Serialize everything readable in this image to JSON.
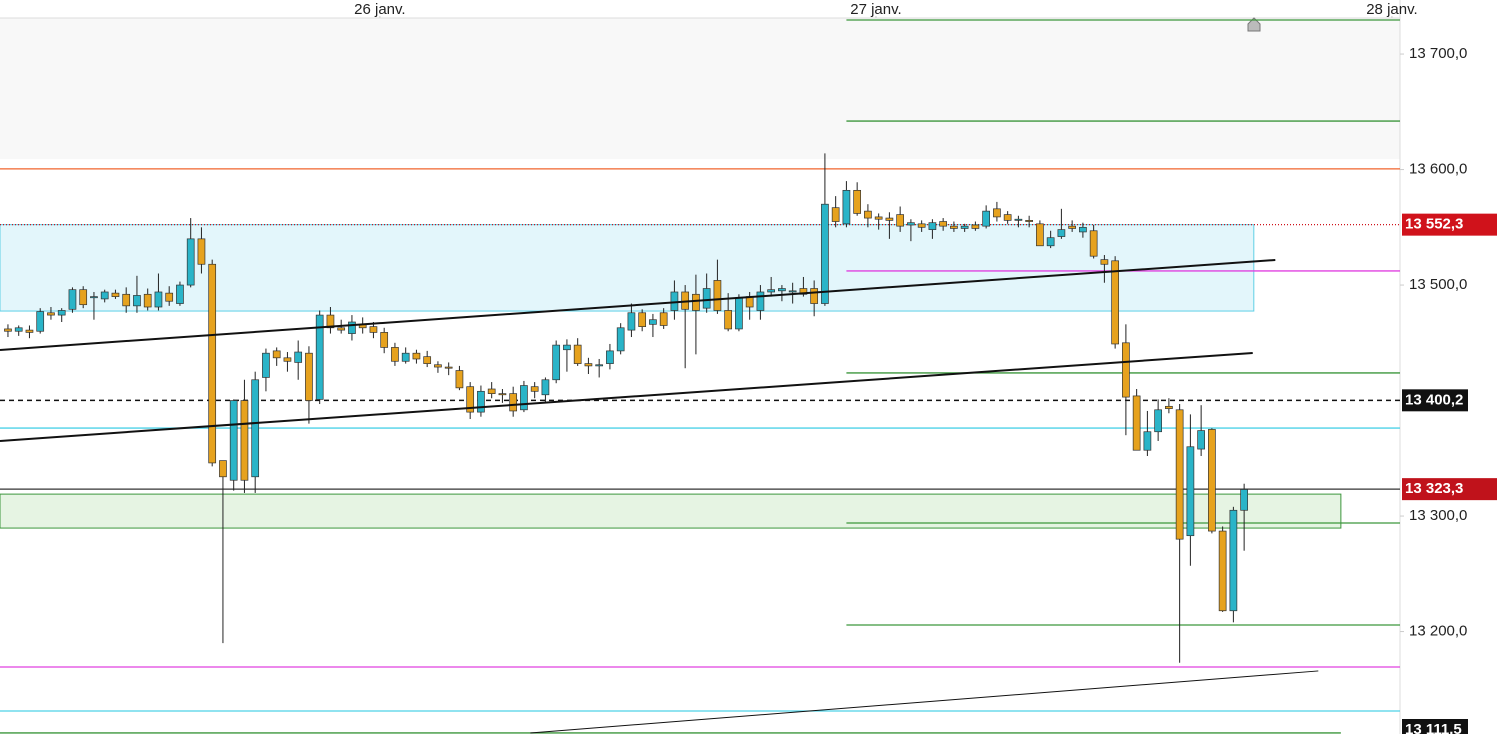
{
  "chart_data": {
    "type": "candlestick",
    "up_color": "#2ab4c8",
    "down_color": "#e6a21e",
    "xlim": [
      -0.74,
      129.5
    ],
    "xticks": [
      {
        "value": 34.6,
        "label": "26 janv."
      },
      {
        "value": 80.75,
        "label": "27 janv."
      },
      {
        "value": 128.75,
        "label": "28 janv."
      }
    ],
    "ylim": [
      13111.3,
      13746.8
    ],
    "yticks": [
      {
        "value": 13200,
        "label": "13 200,0"
      },
      {
        "value": 13300,
        "label": "13 300,0"
      },
      {
        "value": 13500,
        "label": "13 500,0"
      },
      {
        "value": 13600,
        "label": "13 600,0"
      },
      {
        "value": 13700,
        "label": "13 700,0"
      }
    ],
    "open": [
      13462,
      13460,
      13461,
      13460,
      13476,
      13474,
      13479,
      13496,
      13489,
      13488,
      13493,
      13492,
      13482,
      13492,
      13481,
      13493,
      13484,
      13500,
      13540,
      13518,
      13348,
      13331,
      13400,
      13334,
      13420,
      13443,
      13437,
      13433,
      13441,
      13401,
      13474,
      13463,
      13458,
      13466,
      13464,
      13459,
      13446,
      13434,
      13441,
      13438,
      13431,
      13429,
      13426,
      13412,
      13390,
      13410,
      13406,
      13406,
      13392,
      13412,
      13405,
      13418,
      13444,
      13448,
      13432,
      13430,
      13432,
      13443,
      13461,
      13476,
      13466,
      13476,
      13478,
      13494,
      13492,
      13480,
      13504,
      13478,
      13462,
      13490,
      13478,
      13494,
      13495,
      13494,
      13497,
      13497,
      13484,
      13567,
      13553,
      13582,
      13564,
      13559,
      13558,
      13561,
      13552,
      13553,
      13548,
      13555,
      13551,
      13549,
      13552,
      13551,
      13566,
      13561,
      13556,
      13556,
      13553,
      13534,
      13542,
      13551,
      13546,
      13547,
      13522,
      13521,
      13450,
      13404,
      13357,
      13373,
      13395,
      13392,
      13283,
      13358,
      13375,
      13287,
      13218,
      13305
    ],
    "high": [
      13466,
      13465,
      13465,
      13480,
      13481,
      13480,
      13498,
      13499,
      13494,
      13496,
      13496,
      13498,
      13508,
      13497,
      13510,
      13499,
      13503,
      13558,
      13550,
      13522,
      13348,
      13401,
      13418,
      13425,
      13445,
      13446,
      13442,
      13452,
      13447,
      13478,
      13481,
      13470,
      13474,
      13472,
      13468,
      13463,
      13450,
      13446,
      13444,
      13443,
      13434,
      13433,
      13430,
      13416,
      13413,
      13416,
      13410,
      13412,
      13417,
      13416,
      13420,
      13452,
      13453,
      13454,
      13437,
      13436,
      13449,
      13467,
      13484,
      13479,
      13475,
      13480,
      13504,
      13500,
      13509,
      13510,
      13522,
      13493,
      13492,
      13494,
      13500,
      13507,
      13500,
      13502,
      13507,
      13504,
      13614,
      13577,
      13590,
      13589,
      13570,
      13562,
      13563,
      13568,
      13557,
      13556,
      13557,
      13558,
      13555,
      13553,
      13555,
      13569,
      13572,
      13564,
      13560,
      13560,
      13556,
      13547,
      13566,
      13556,
      13554,
      13552,
      13526,
      13525,
      13466,
      13410,
      13391,
      13401,
      13402,
      13397,
      13388,
      13396,
      13376,
      13291,
      13308,
      13328
    ],
    "low": [
      13455,
      13456,
      13454,
      13458,
      13470,
      13468,
      13476,
      13480,
      13470,
      13485,
      13488,
      13476,
      13476,
      13478,
      13478,
      13482,
      13482,
      13498,
      13510,
      13343,
      13190,
      13322,
      13320,
      13320,
      13408,
      13430,
      13425,
      13418,
      13380,
      13397,
      13458,
      13458,
      13452,
      13458,
      13454,
      13441,
      13430,
      13432,
      13432,
      13429,
      13424,
      13422,
      13409,
      13384,
      13386,
      13402,
      13398,
      13386,
      13390,
      13402,
      13398,
      13415,
      13425,
      13430,
      13423,
      13420,
      13427,
      13440,
      13455,
      13460,
      13455,
      13462,
      13470,
      13428,
      13440,
      13476,
      13475,
      13460,
      13460,
      13470,
      13470,
      13490,
      13486,
      13484,
      13490,
      13473,
      13482,
      13550,
      13550,
      13560,
      13550,
      13548,
      13540,
      13546,
      13538,
      13546,
      13540,
      13547,
      13546,
      13546,
      13547,
      13549,
      13555,
      13553,
      13550,
      13550,
      13534,
      13532,
      13540,
      13546,
      13541,
      13523,
      13502,
      13445,
      13370,
      13357,
      13352,
      13365,
      13389,
      13173,
      13257,
      13352,
      13285,
      13217,
      13208,
      13270
    ],
    "close": [
      13460,
      13463,
      13459,
      13477,
      13474,
      13478,
      13496,
      13483,
      13490,
      13494,
      13490,
      13482,
      13491,
      13481,
      13494,
      13486,
      13500,
      13540,
      13518,
      13346,
      13334,
      13400,
      13331,
      13418,
      13441,
      13437,
      13434,
      13442,
      13400,
      13474,
      13463,
      13461,
      13468,
      13463,
      13459,
      13446,
      13434,
      13441,
      13436,
      13432,
      13429,
      13428,
      13411,
      13390,
      13408,
      13406,
      13405,
      13391,
      13413,
      13408,
      13418,
      13448,
      13448,
      13432,
      13430,
      13431,
      13443,
      13463,
      13476,
      13464,
      13470,
      13465,
      13494,
      13479,
      13478,
      13497,
      13478,
      13462,
      13489,
      13481,
      13494,
      13496,
      13497,
      13495,
      13492,
      13484,
      13570,
      13555,
      13582,
      13562,
      13558,
      13557,
      13556,
      13551,
      13554,
      13550,
      13554,
      13551,
      13549,
      13551,
      13549,
      13564,
      13559,
      13556,
      13557,
      13555,
      13534,
      13541,
      13548,
      13549,
      13550,
      13525,
      13518,
      13449,
      13403,
      13357,
      13373,
      13392,
      13393,
      13280,
      13360,
      13374,
      13287,
      13218,
      13305,
      13323
    ],
    "zones": [
      {
        "x": [
          -0.74,
          115.9
        ],
        "y": [
          13477.5,
          13552.3
        ],
        "fill": "#e3f6fb",
        "stroke": "#5fd0e6"
      },
      {
        "x": [
          -0.74,
          124
        ],
        "y": [
          13289.6,
          13319
        ],
        "fill": "#e6f4e3",
        "stroke": "#3c963c"
      }
    ],
    "levels": [
      {
        "value": 13600.6,
        "color": "#f0642d",
        "from": -0.74,
        "to": 129.5
      },
      {
        "value": 13552.3,
        "color": "#d0121b",
        "from": -0.74,
        "to": 129.5,
        "style": "dotted"
      },
      {
        "value": 13512.2,
        "color": "#e040e0",
        "from": 78,
        "to": 129.5
      },
      {
        "value": 13729.5,
        "color": "#3c963c",
        "from": 78,
        "to": 129.5
      },
      {
        "value": 13642,
        "color": "#3c963c",
        "from": 78,
        "to": 129.5
      },
      {
        "value": 13423.9,
        "color": "#3c963c",
        "from": 78,
        "to": 129.5
      },
      {
        "value": 13400.2,
        "color": "#111111",
        "from": -0.74,
        "to": 129.5,
        "style": "dashed"
      },
      {
        "value": 13376.2,
        "color": "#4dd2e8",
        "from": -0.74,
        "to": 129.5
      },
      {
        "value": 13323.3,
        "color": "#333333",
        "from": -0.74,
        "to": 129.5
      },
      {
        "value": 13294,
        "color": "#3c963c",
        "from": 78,
        "to": 129.5
      },
      {
        "value": 13205.7,
        "color": "#3c963c",
        "from": 78,
        "to": 129.5
      },
      {
        "value": 13169.3,
        "color": "#e040e0",
        "from": -0.74,
        "to": 129.5
      },
      {
        "value": 13131.2,
        "color": "#4dd2e8",
        "from": -0.74,
        "to": 129.5
      },
      {
        "value": 13112.2,
        "color": "#3c963c",
        "from": -0.74,
        "to": 124
      }
    ],
    "trendlines": [
      {
        "x": [
          -0.74,
          117.9
        ],
        "y": [
          13443.8,
          13521.7
        ],
        "color": "#111111",
        "width": 2
      },
      {
        "x": [
          -0.74,
          115.8
        ],
        "y": [
          13365,
          13441.2
        ],
        "color": "#111111",
        "width": 2
      },
      {
        "x": [
          48.6,
          121.9
        ],
        "y": [
          13112.2,
          13165.9
        ],
        "color": "#111111",
        "width": 1
      }
    ],
    "price_markers": [
      {
        "value": 13552.3,
        "label": "13 552,3",
        "color": "#d0121b"
      },
      {
        "value": 13400.2,
        "label": "13 400,2",
        "color": "#111111"
      },
      {
        "value": 13323.3,
        "label": "13 323,3",
        "color": "#c0121b"
      },
      {
        "value": 13111.5,
        "label": "13 111,5",
        "color": "#111111"
      }
    ]
  }
}
